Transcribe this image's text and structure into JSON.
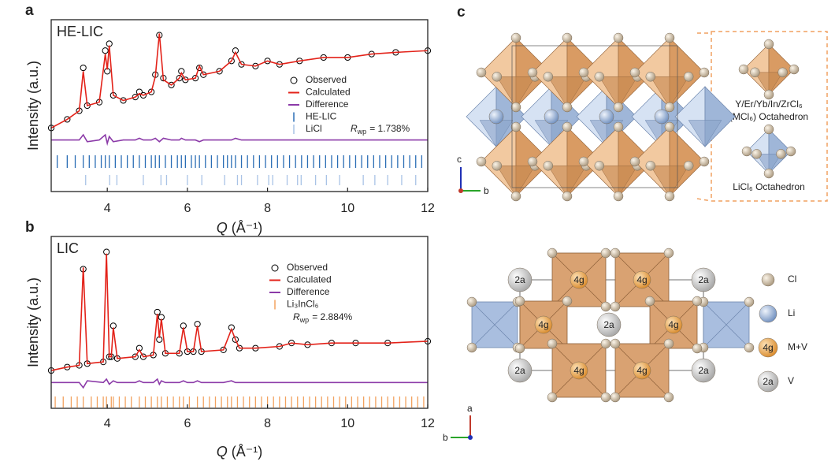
{
  "chart_data": [
    {
      "type": "line",
      "panel_label": "a",
      "label": "HE-LIC",
      "ylabel": "Intensity (a.u.)",
      "xlabel_symbol": "Q",
      "xlabel_unit": "(Å⁻¹)",
      "xlim": [
        2.6,
        12
      ],
      "xticks": [
        4,
        6,
        8,
        10,
        12
      ],
      "ylim": [
        0,
        1
      ],
      "x": [
        2.6,
        3.0,
        3.3,
        3.4,
        3.5,
        3.8,
        3.95,
        4.0,
        4.05,
        4.15,
        4.4,
        4.7,
        4.8,
        4.9,
        5.1,
        5.2,
        5.3,
        5.4,
        5.6,
        5.8,
        5.85,
        5.95,
        6.2,
        6.3,
        6.4,
        6.8,
        7.1,
        7.2,
        7.35,
        7.7,
        8.0,
        8.3,
        8.8,
        9.4,
        10.0,
        10.6,
        11.2,
        12.0
      ],
      "series": [
        {
          "name": "Observed",
          "color": "#000000",
          "style": "markers",
          "values": [
            0.37,
            0.42,
            0.47,
            0.72,
            0.5,
            0.52,
            0.82,
            0.7,
            0.86,
            0.56,
            0.53,
            0.55,
            0.58,
            0.56,
            0.58,
            0.68,
            0.91,
            0.66,
            0.62,
            0.66,
            0.7,
            0.65,
            0.66,
            0.72,
            0.68,
            0.7,
            0.76,
            0.82,
            0.74,
            0.73,
            0.76,
            0.74,
            0.76,
            0.78,
            0.78,
            0.8,
            0.81,
            0.82
          ]
        },
        {
          "name": "Calculated",
          "color": "#e32219",
          "style": "line",
          "values": [
            0.37,
            0.42,
            0.47,
            0.7,
            0.5,
            0.52,
            0.8,
            0.71,
            0.85,
            0.56,
            0.53,
            0.55,
            0.57,
            0.56,
            0.58,
            0.67,
            0.92,
            0.65,
            0.62,
            0.66,
            0.69,
            0.65,
            0.66,
            0.73,
            0.68,
            0.7,
            0.76,
            0.81,
            0.74,
            0.73,
            0.76,
            0.74,
            0.76,
            0.78,
            0.78,
            0.8,
            0.81,
            0.82
          ]
        },
        {
          "name": "Difference",
          "color": "#8b3aa8",
          "style": "line",
          "values": [
            0.3,
            0.3,
            0.3,
            0.33,
            0.29,
            0.3,
            0.33,
            0.28,
            0.32,
            0.29,
            0.3,
            0.3,
            0.31,
            0.3,
            0.3,
            0.31,
            0.29,
            0.31,
            0.3,
            0.3,
            0.31,
            0.3,
            0.3,
            0.29,
            0.3,
            0.3,
            0.3,
            0.31,
            0.3,
            0.3,
            0.3,
            0.3,
            0.3,
            0.3,
            0.3,
            0.3,
            0.3,
            0.3
          ]
        }
      ],
      "reflections": [
        {
          "name": "HE-LIC",
          "color": "#2a6db5",
          "positions": [
            2.75,
            3.0,
            3.2,
            3.4,
            3.55,
            3.7,
            3.85,
            3.95,
            4.05,
            4.2,
            4.35,
            4.5,
            4.65,
            4.8,
            4.95,
            5.1,
            5.2,
            5.3,
            5.45,
            5.6,
            5.75,
            5.85,
            5.95,
            6.1,
            6.2,
            6.3,
            6.45,
            6.6,
            6.75,
            6.9,
            7.0,
            7.1,
            7.2,
            7.35,
            7.5,
            7.65,
            7.8,
            7.95,
            8.1,
            8.25,
            8.4,
            8.55,
            8.7,
            8.85,
            9.0,
            9.15,
            9.3,
            9.45,
            9.6,
            9.75,
            9.9,
            10.05,
            10.2,
            10.35,
            10.5,
            10.65,
            10.8,
            10.95,
            11.1,
            11.25,
            11.4,
            11.55,
            11.7,
            11.85
          ]
        },
        {
          "name": "LiCl",
          "color": "#a9c3e6",
          "positions": [
            3.46,
            4.06,
            4.24,
            4.9,
            5.34,
            5.48,
            6.0,
            6.36,
            6.93,
            7.25,
            7.35,
            7.75,
            8.03,
            8.13,
            8.49,
            8.75,
            8.84,
            9.2,
            9.47,
            9.8,
            10.39,
            10.68,
            11.0,
            11.35,
            11.7
          ]
        }
      ],
      "rwp": {
        "symbol": "R",
        "subscript": "wp",
        "text": "= 1.738%"
      }
    },
    {
      "type": "line",
      "panel_label": "b",
      "label": "LIC",
      "ylabel": "Intensity (a.u.)",
      "xlabel_symbol": "Q",
      "xlabel_unit": "(Å⁻¹)",
      "xlim": [
        2.6,
        12
      ],
      "xticks": [
        4,
        6,
        8,
        10,
        12
      ],
      "ylim": [
        0,
        1
      ],
      "x": [
        2.6,
        3.0,
        3.3,
        3.4,
        3.5,
        3.9,
        3.98,
        4.05,
        4.1,
        4.15,
        4.25,
        4.7,
        4.8,
        4.9,
        5.15,
        5.25,
        5.3,
        5.35,
        5.45,
        5.8,
        5.9,
        6.0,
        6.15,
        6.25,
        6.35,
        6.9,
        7.1,
        7.2,
        7.3,
        7.7,
        8.3,
        8.6,
        9.0,
        9.6,
        10.2,
        11.0,
        12.0
      ],
      "series": [
        {
          "name": "Observed",
          "color": "#000000",
          "style": "markers",
          "values": [
            0.22,
            0.24,
            0.25,
            0.81,
            0.26,
            0.27,
            0.91,
            0.3,
            0.3,
            0.48,
            0.29,
            0.3,
            0.35,
            0.3,
            0.31,
            0.56,
            0.4,
            0.53,
            0.32,
            0.32,
            0.48,
            0.33,
            0.33,
            0.49,
            0.33,
            0.34,
            0.47,
            0.4,
            0.35,
            0.35,
            0.36,
            0.38,
            0.37,
            0.38,
            0.38,
            0.38,
            0.39
          ]
        },
        {
          "name": "Calculated",
          "color": "#e32219",
          "style": "line",
          "values": [
            0.22,
            0.24,
            0.25,
            0.82,
            0.26,
            0.27,
            0.9,
            0.3,
            0.3,
            0.47,
            0.29,
            0.3,
            0.34,
            0.3,
            0.31,
            0.55,
            0.41,
            0.52,
            0.32,
            0.32,
            0.47,
            0.33,
            0.33,
            0.48,
            0.33,
            0.34,
            0.46,
            0.4,
            0.35,
            0.35,
            0.36,
            0.38,
            0.37,
            0.38,
            0.38,
            0.38,
            0.39
          ]
        },
        {
          "name": "Difference",
          "color": "#8b3aa8",
          "style": "line",
          "values": [
            0.15,
            0.15,
            0.15,
            0.12,
            0.16,
            0.15,
            0.17,
            0.14,
            0.15,
            0.16,
            0.15,
            0.15,
            0.16,
            0.15,
            0.15,
            0.17,
            0.14,
            0.16,
            0.15,
            0.15,
            0.16,
            0.15,
            0.15,
            0.16,
            0.15,
            0.15,
            0.16,
            0.15,
            0.15,
            0.15,
            0.15,
            0.15,
            0.15,
            0.15,
            0.15,
            0.15,
            0.15
          ]
        }
      ],
      "reflections": [
        {
          "name": "Li₃InCl₆",
          "color": "#f2a25f",
          "positions": [
            2.7,
            2.9,
            3.1,
            3.25,
            3.4,
            3.6,
            3.75,
            3.9,
            3.98,
            4.1,
            4.15,
            4.3,
            4.45,
            4.6,
            4.8,
            4.95,
            5.1,
            5.25,
            5.35,
            5.5,
            5.65,
            5.8,
            5.9,
            6.05,
            6.25,
            6.4,
            6.55,
            6.7,
            6.85,
            7.0,
            7.1,
            7.25,
            7.4,
            7.55,
            7.7,
            7.85,
            8.0,
            8.15,
            8.3,
            8.45,
            8.6,
            8.75,
            8.9,
            9.05,
            9.2,
            9.35,
            9.5,
            9.65,
            9.8,
            9.95,
            10.1,
            10.25,
            10.4,
            10.55,
            10.7,
            10.85,
            11.0,
            11.15,
            11.3,
            11.45,
            11.6,
            11.75,
            11.9
          ]
        }
      ],
      "rwp": {
        "symbol": "R",
        "subscript": "wp",
        "text": "= 2.884%"
      }
    }
  ],
  "diagram": {
    "panel_label": "c",
    "top": {
      "axis_labels": [
        "c",
        "b"
      ],
      "inset": {
        "mcl_formula": "Y/Er/Yb/In/ZrCl₆",
        "mcl_name": "(MCl₆) Octahedron",
        "licl_name": "LiCl₆ Octahedron"
      }
    },
    "bottom": {
      "axis_labels": [
        "a",
        "b"
      ],
      "site_2a": "2a",
      "site_4g": "4g",
      "legend": [
        "Cl",
        "Li",
        "M+V",
        "V"
      ]
    }
  }
}
